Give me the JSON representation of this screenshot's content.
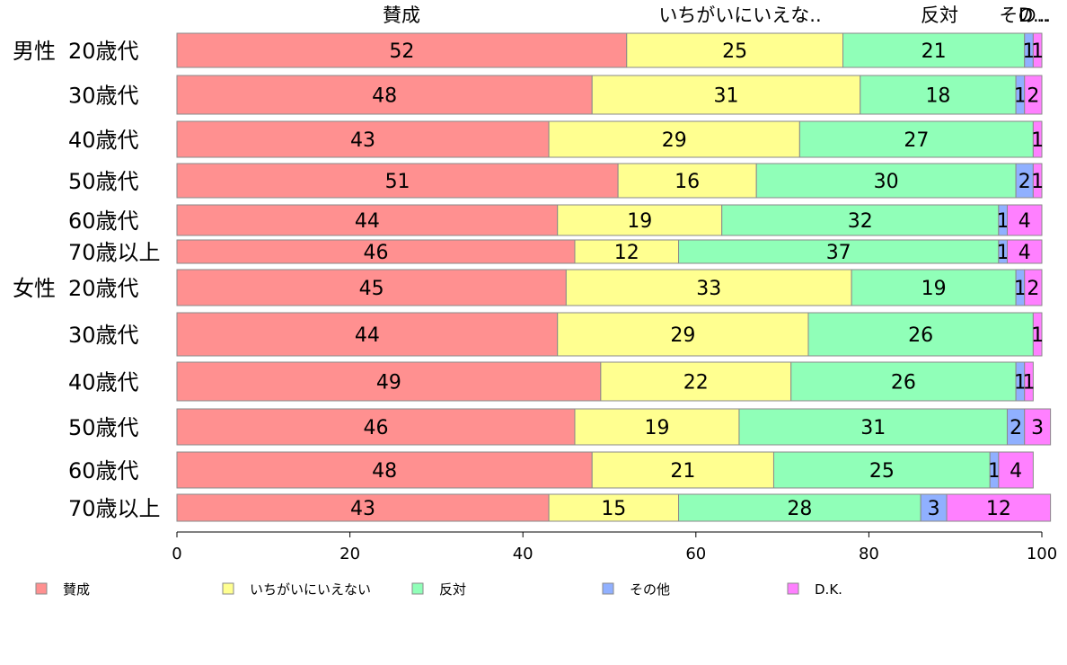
{
  "chart_data": {
    "type": "bar",
    "orientation": "horizontal",
    "stacked": true,
    "title": "",
    "xlabel": "",
    "ylabel": "",
    "xlim": [
      0,
      100
    ],
    "ticks": [
      "0",
      "20",
      "40",
      "60",
      "80",
      "100"
    ],
    "tick_values": [
      0,
      20,
      40,
      60,
      80,
      100
    ],
    "grid": false,
    "legend_position": "bottom",
    "column_headers": [
      "賛成",
      "いちがいにいえな..",
      "反対",
      "その..",
      "D..."
    ],
    "groups": [
      {
        "label": "男性",
        "category_labels": [
          "20歳代",
          "30歳代",
          "40歳代",
          "50歳代",
          "60歳代",
          "70歳以上"
        ]
      },
      {
        "label": "女性",
        "category_labels": [
          "20歳代",
          "30歳代",
          "40歳代",
          "50歳代",
          "60歳代",
          "70歳以上"
        ]
      }
    ],
    "categories": [
      "男性 20歳代",
      "男性 30歳代",
      "男性 40歳代",
      "男性 50歳代",
      "男性 60歳代",
      "男性 70歳以上",
      "女性 20歳代",
      "女性 30歳代",
      "女性 40歳代",
      "女性 50歳代",
      "女性 60歳代",
      "女性 70歳以上"
    ],
    "series": [
      {
        "name": "賛成",
        "color": "#FF9090",
        "values": [
          52,
          48,
          43,
          51,
          44,
          46,
          45,
          44,
          49,
          46,
          48,
          43
        ]
      },
      {
        "name": "いちがいにいえない",
        "color": "#FFFF90",
        "values": [
          25,
          31,
          29,
          16,
          19,
          12,
          33,
          29,
          22,
          19,
          21,
          15
        ]
      },
      {
        "name": "反対",
        "color": "#90FFB8",
        "values": [
          21,
          18,
          27,
          30,
          32,
          37,
          19,
          26,
          26,
          31,
          25,
          28
        ]
      },
      {
        "name": "その他",
        "color": "#90B0FF",
        "values": [
          1,
          1,
          0,
          2,
          1,
          1,
          1,
          0,
          1,
          2,
          1,
          3
        ]
      },
      {
        "name": "D.K.",
        "color": "#FF80FF",
        "values": [
          1,
          2,
          1,
          1,
          4,
          4,
          2,
          1,
          1,
          3,
          4,
          12
        ]
      }
    ]
  }
}
